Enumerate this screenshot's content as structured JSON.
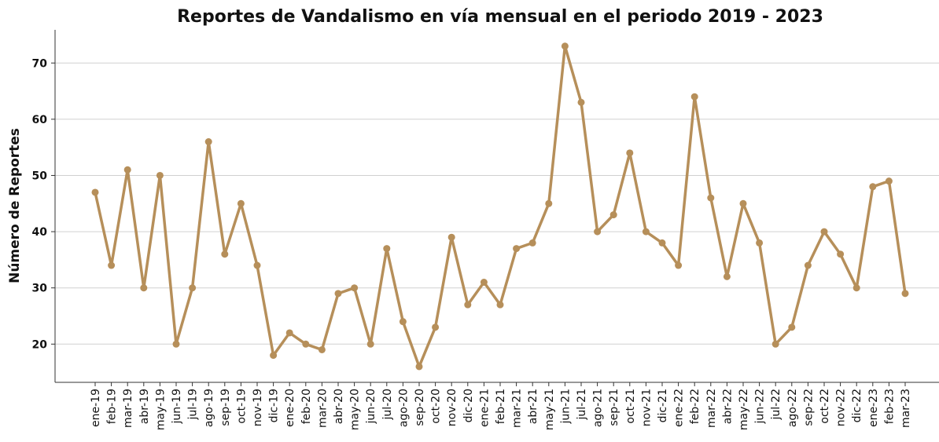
{
  "chart_data": {
    "type": "line",
    "title": "Reportes de Vandalismo en vía mensual en el periodo 2019 - 2023",
    "y_label": "Número de Reportes",
    "categories": [
      "ene-19",
      "feb-19",
      "mar-19",
      "abr-19",
      "may-19",
      "jun-19",
      "jul-19",
      "ago-19",
      "sep-19",
      "oct-19",
      "nov-19",
      "dic-19",
      "ene-20",
      "feb-20",
      "mar-20",
      "abr-20",
      "may-20",
      "jun-20",
      "jul-20",
      "ago-20",
      "sep-20",
      "oct-20",
      "nov-20",
      "dic-20",
      "ene-21",
      "feb-21",
      "mar-21",
      "abr-21",
      "may-21",
      "jun-21",
      "jul-21",
      "ago-21",
      "sep-21",
      "oct-21",
      "nov-21",
      "dic-21",
      "ene-22",
      "feb-22",
      "mar-22",
      "abr-22",
      "may-22",
      "jun-22",
      "jul-22",
      "ago-22",
      "sep-22",
      "oct-22",
      "nov-22",
      "dic-22",
      "ene-23",
      "feb-23",
      "mar-23"
    ],
    "values": [
      47,
      34,
      51,
      30,
      50,
      20,
      30,
      56,
      36,
      45,
      34,
      18,
      22,
      20,
      19,
      29,
      30,
      20,
      37,
      24,
      16,
      23,
      39,
      27,
      31,
      27,
      37,
      38,
      45,
      73,
      63,
      40,
      43,
      54,
      40,
      38,
      34,
      64,
      46,
      32,
      45,
      38,
      20,
      23,
      34,
      40,
      36,
      30,
      48,
      49,
      29
    ],
    "color": "#b68f5a",
    "ylim": [
      13.2,
      75.9
    ],
    "yticks": [
      20,
      30,
      40,
      50,
      60,
      70
    ],
    "grid": true
  }
}
